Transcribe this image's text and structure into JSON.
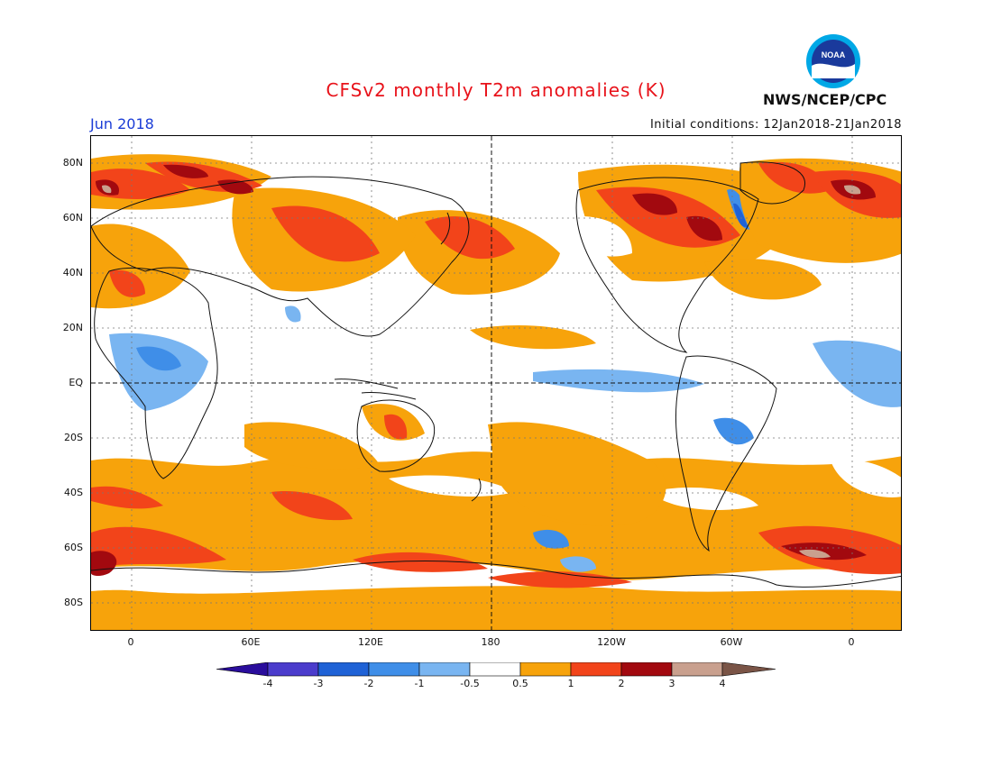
{
  "header": {
    "title": "CFSv2 monthly T2m anomalies (K)",
    "valid_month": "Jun 2018",
    "initial_conditions": "Initial conditions: 12Jan2018-21Jan2018",
    "agency": "NWS/NCEP/CPC",
    "logo_text": "NOAA"
  },
  "axes": {
    "lat_labels": [
      "80N",
      "60N",
      "40N",
      "20N",
      "EQ",
      "20S",
      "40S",
      "60S",
      "80S"
    ],
    "lon_labels": [
      "0",
      "60E",
      "120E",
      "180",
      "120W",
      "60W",
      "0"
    ]
  },
  "colorbar": {
    "labels": [
      "-4",
      "-3",
      "-2",
      "-1",
      "-0.5",
      "0.5",
      "1",
      "2",
      "3",
      "4"
    ],
    "colors": [
      "#2a0d9c",
      "#4b3ccc",
      "#1f62d6",
      "#3f8ee8",
      "#79b5f1",
      "#ffffff",
      "#f7a30b",
      "#f2441a",
      "#a2090f",
      "#c9a08e",
      "#7a5446"
    ]
  },
  "map_colors": {
    "warm_05_1": "#f7a30b",
    "warm_1_2": "#f2441a",
    "warm_2_3": "#a2090f",
    "warm_3_4": "#c9a08e",
    "cool_05_1": "#79b5f1",
    "cool_1_2": "#3f8ee8",
    "cool_2_3": "#1f62d6"
  }
}
